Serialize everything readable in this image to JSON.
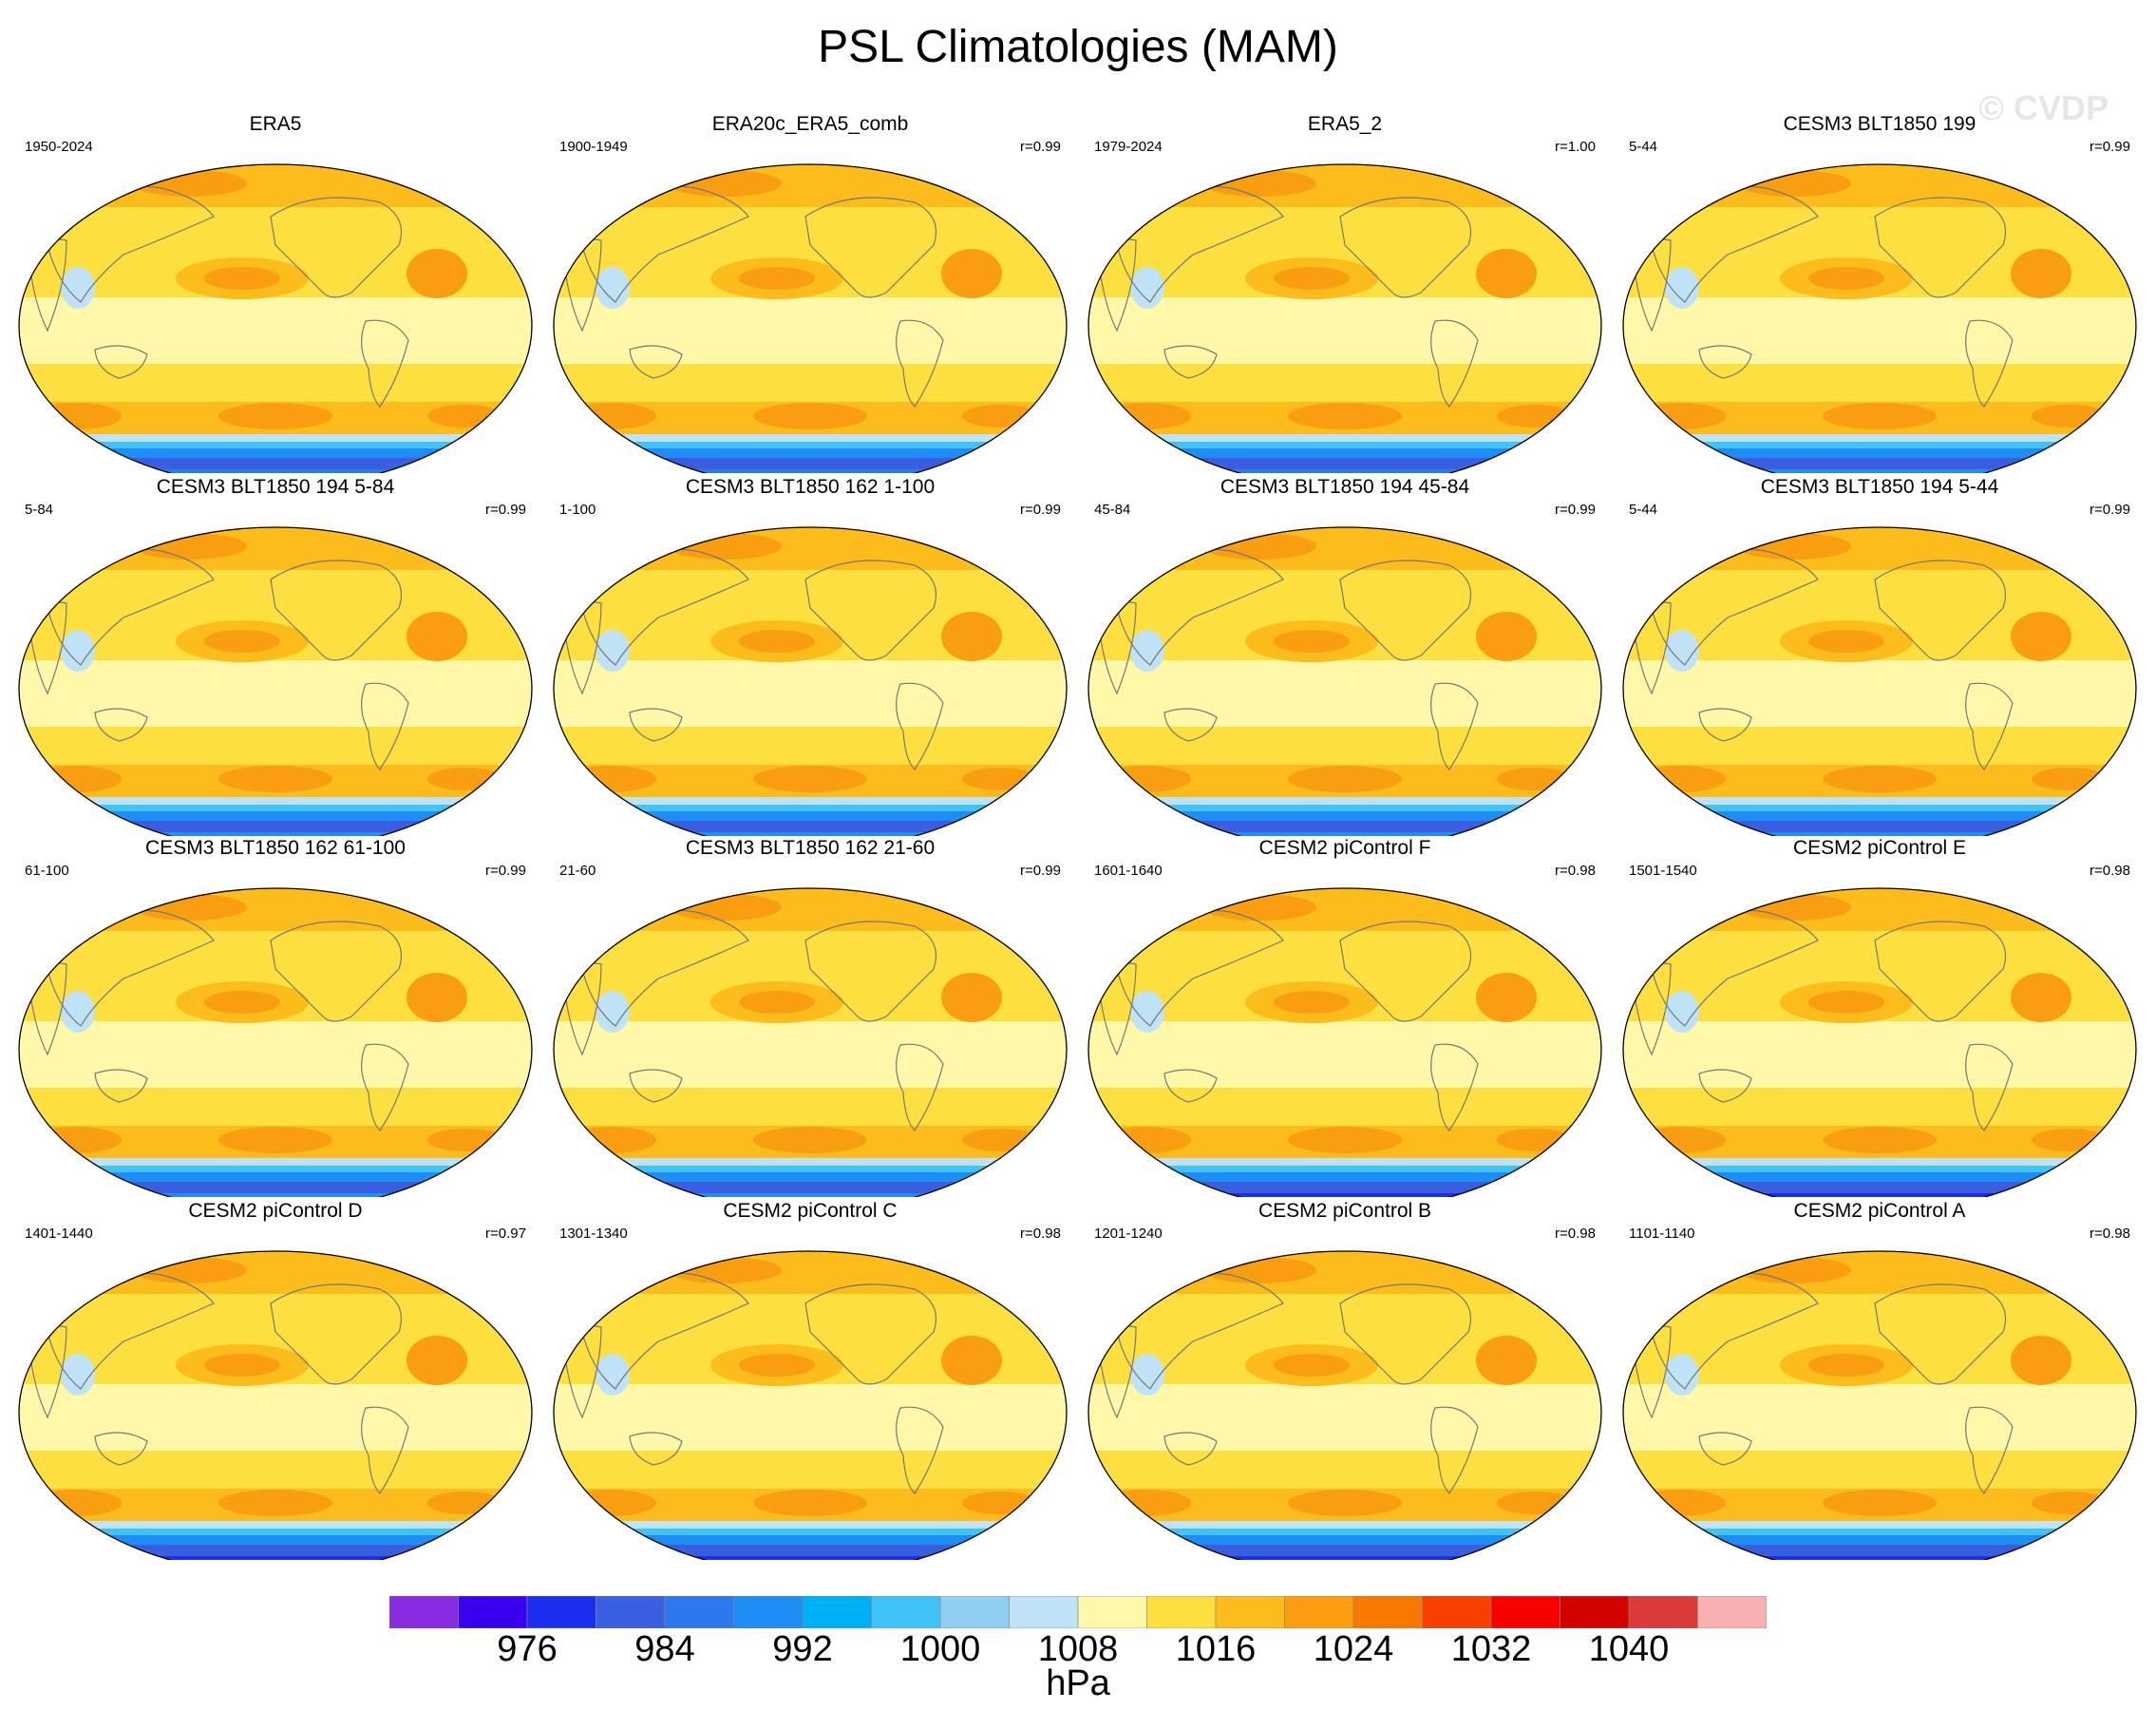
{
  "title": "PSL Climatologies (MAM)",
  "watermark": "© CVDP",
  "panels": [
    {
      "name": "ERA5",
      "years": "1950-2024",
      "r": "",
      "south_style": "ice"
    },
    {
      "name": "ERA20c_ERA5_comb",
      "years": "1900-1949",
      "r": "r=0.99",
      "south_style": "ice"
    },
    {
      "name": "ERA5_2",
      "years": "1979-2024",
      "r": "r=1.00",
      "south_style": "ice"
    },
    {
      "name": "CESM3 BLT1850 199",
      "years": "5-44",
      "r": "r=0.99",
      "south_style": "pale"
    },
    {
      "name": "CESM3 BLT1850 194 5-84",
      "years": "5-84",
      "r": "r=0.99",
      "south_style": "pale"
    },
    {
      "name": "CESM3 BLT1850 162 1-100",
      "years": "1-100",
      "r": "r=0.99",
      "south_style": "pale"
    },
    {
      "name": "CESM3 BLT1850 194 45-84",
      "years": "45-84",
      "r": "r=0.99",
      "south_style": "pale"
    },
    {
      "name": "CESM3 BLT1850 194 5-44",
      "years": "5-44",
      "r": "r=0.99",
      "south_style": "pale"
    },
    {
      "name": "CESM3 BLT1850 162 61-100",
      "years": "61-100",
      "r": "r=0.99",
      "south_style": "pale"
    },
    {
      "name": "CESM3 BLT1850 162 21-60",
      "years": "21-60",
      "r": "r=0.99",
      "south_style": "pale"
    },
    {
      "name": "CESM2 piControl F",
      "years": "1601-1640",
      "r": "r=0.98",
      "south_style": "deep"
    },
    {
      "name": "CESM2 piControl E",
      "years": "1501-1540",
      "r": "r=0.98",
      "south_style": "deep"
    },
    {
      "name": "CESM2 piControl D",
      "years": "1401-1440",
      "r": "r=0.97",
      "south_style": "deep"
    },
    {
      "name": "CESM2 piControl C",
      "years": "1301-1340",
      "r": "r=0.98",
      "south_style": "deep"
    },
    {
      "name": "CESM2 piControl B",
      "years": "1201-1240",
      "r": "r=0.98",
      "south_style": "deep"
    },
    {
      "name": "CESM2 piControl A",
      "years": "1101-1140",
      "r": "r=0.98",
      "south_style": "deep"
    }
  ],
  "colorbar": {
    "units": "hPa",
    "tick_labels": [
      "976",
      "984",
      "992",
      "1000",
      "1008",
      "1016",
      "1024",
      "1032",
      "1040"
    ],
    "colors": [
      "#8a2be2",
      "#3a00f0",
      "#1a2ef0",
      "#3a5ee0",
      "#2e78ee",
      "#1e8ef6",
      "#00b0f6",
      "#40c4f6",
      "#90cef0",
      "#bfe2f6",
      "#fff8a8",
      "#fde040",
      "#fbbc1c",
      "#f89e10",
      "#f87800",
      "#f83e00",
      "#f80000",
      "#d40000",
      "#dc3a3a",
      "#f8b0b0"
    ]
  }
}
